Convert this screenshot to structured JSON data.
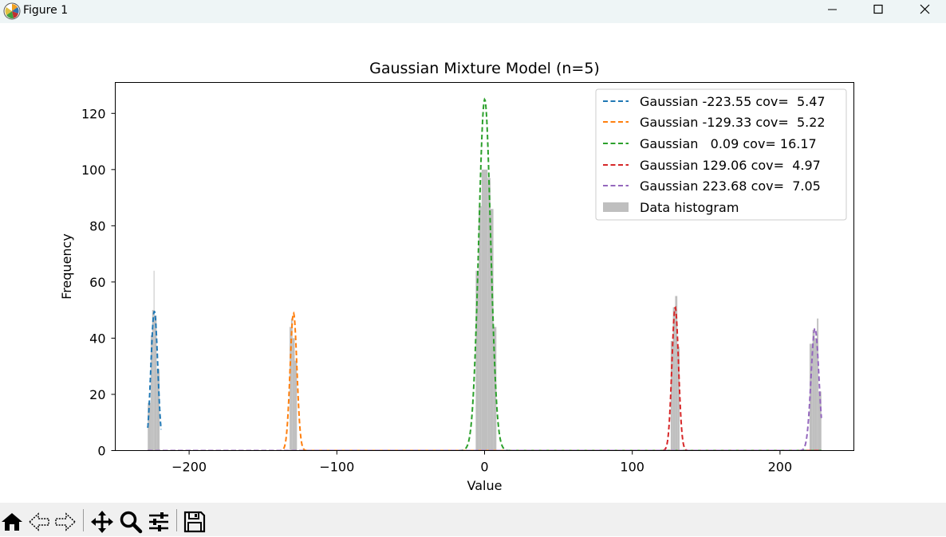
{
  "window": {
    "title": "Figure 1",
    "controls": [
      "minimize",
      "maximize",
      "close"
    ]
  },
  "toolbar": {
    "icons": [
      "home-icon",
      "back-arrow-icon",
      "forward-arrow-icon",
      "pan-move-icon",
      "zoom-magnifier-icon",
      "configure-subplots-icon",
      "save-floppy-icon"
    ]
  },
  "chart_data": {
    "type": "line",
    "title": "Gaussian Mixture Model (n=5)",
    "xlabel": "Value",
    "ylabel": "Frequency",
    "xlim": [
      -250,
      250
    ],
    "ylim": [
      0,
      131
    ],
    "xticks": [
      -200,
      -100,
      0,
      100,
      200
    ],
    "xtick_labels": [
      "−200",
      "−100",
      "0",
      "100",
      "200"
    ],
    "yticks": [
      0,
      20,
      40,
      60,
      80,
      100,
      120
    ],
    "ytick_labels": [
      "0",
      "20",
      "40",
      "60",
      "80",
      "100",
      "120"
    ],
    "grid": false,
    "legend_position": "top-right",
    "series": [
      {
        "name": "Gaussian -223.55 cov=  5.47",
        "kind": "gaussian",
        "mean": -223.55,
        "cov": 5.47,
        "peak": 49.5,
        "color": "#1f77b4",
        "x_range": [
          -228,
          -219
        ]
      },
      {
        "name": "Gaussian -129.33 cov=  5.22",
        "kind": "gaussian",
        "mean": -129.33,
        "cov": 5.22,
        "peak": 49,
        "color": "#ff7f0e",
        "x_range": [
          -228,
          228
        ]
      },
      {
        "name": "Gaussian   0.09 cov= 16.17",
        "kind": "gaussian",
        "mean": 0.09,
        "cov": 16.17,
        "peak": 125,
        "color": "#2ca02c",
        "x_range": [
          -228,
          228
        ]
      },
      {
        "name": "Gaussian 129.06 cov=  4.97",
        "kind": "gaussian",
        "mean": 129.06,
        "cov": 4.97,
        "peak": 51,
        "color": "#d62728",
        "x_range": [
          -228,
          228
        ]
      },
      {
        "name": "Gaussian 223.68 cov=  7.05",
        "kind": "gaussian",
        "mean": 223.68,
        "cov": 7.05,
        "peak": 43.5,
        "color": "#9467bd",
        "x_range": [
          -228,
          228
        ]
      }
    ],
    "histogram": {
      "name": "Data histogram",
      "color": "#bfbfbf",
      "bins": [
        {
          "x0": -228,
          "x1": -226,
          "y": 17
        },
        {
          "x0": -226,
          "x1": -225,
          "y": 41
        },
        {
          "x0": -225,
          "x1": -224,
          "y": 50
        },
        {
          "x0": -224,
          "x1": -223.5,
          "y": 64
        },
        {
          "x0": -223.5,
          "x1": -222,
          "y": 48
        },
        {
          "x0": -222,
          "x1": -220,
          "y": 29
        },
        {
          "x0": -132,
          "x1": -131,
          "y": 44
        },
        {
          "x0": -131,
          "x1": -130,
          "y": 47
        },
        {
          "x0": -130,
          "x1": -128.5,
          "y": 40
        },
        {
          "x0": -128.5,
          "x1": -127,
          "y": 32
        },
        {
          "x0": -6,
          "x1": -4,
          "y": 64
        },
        {
          "x0": -4,
          "x1": -2,
          "y": 87
        },
        {
          "x0": -2,
          "x1": 2,
          "y": 100
        },
        {
          "x0": 2,
          "x1": 4,
          "y": 97
        },
        {
          "x0": 4,
          "x1": 6,
          "y": 86
        },
        {
          "x0": 6,
          "x1": 8,
          "y": 44
        },
        {
          "x0": 126,
          "x1": 127.5,
          "y": 39
        },
        {
          "x0": 127.5,
          "x1": 129,
          "y": 51
        },
        {
          "x0": 129,
          "x1": 130.5,
          "y": 55
        },
        {
          "x0": 130.5,
          "x1": 132,
          "y": 37
        },
        {
          "x0": 220,
          "x1": 222,
          "y": 38
        },
        {
          "x0": 222,
          "x1": 223.5,
          "y": 43
        },
        {
          "x0": 223.5,
          "x1": 225,
          "y": 40
        },
        {
          "x0": 225,
          "x1": 226,
          "y": 47
        },
        {
          "x0": 226,
          "x1": 228,
          "y": 21
        }
      ]
    }
  }
}
